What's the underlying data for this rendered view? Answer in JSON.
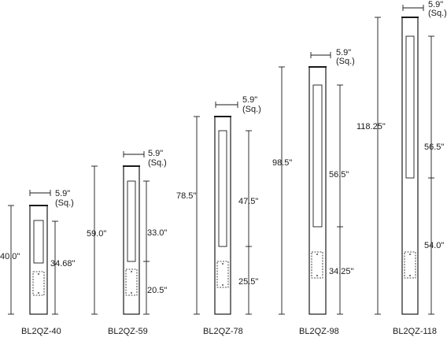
{
  "bollards": [
    {
      "model": "BL2QZ-40",
      "width_label": "5.9\"",
      "width_sub": "(Sq.)",
      "overall_height_label": "40.0\"",
      "upper_dim_label": "34.68\"",
      "lower_dim_label": ""
    },
    {
      "model": "BL2QZ-59",
      "width_label": "5.9\"",
      "width_sub": "(Sq.)",
      "overall_height_label": "59.0\"",
      "upper_dim_label": "33.0\"",
      "lower_dim_label": "20.5\""
    },
    {
      "model": "BL2QZ-78",
      "width_label": "5.9\"",
      "width_sub": "(Sq.)",
      "overall_height_label": "78.5\"",
      "upper_dim_label": "47.5\"",
      "lower_dim_label": "25.5\""
    },
    {
      "model": "BL2QZ-98",
      "width_label": "5.9\"",
      "width_sub": "(Sq.)",
      "overall_height_label": "98.5\"",
      "upper_dim_label": "56.5\"",
      "lower_dim_label": "34.25\""
    },
    {
      "model": "BL2QZ-118",
      "width_label": "5.9\"",
      "width_sub": "(Sq.)",
      "overall_height_label": "118.25\"",
      "upper_dim_label": "56.5\"",
      "lower_dim_label": "54.0\""
    }
  ]
}
